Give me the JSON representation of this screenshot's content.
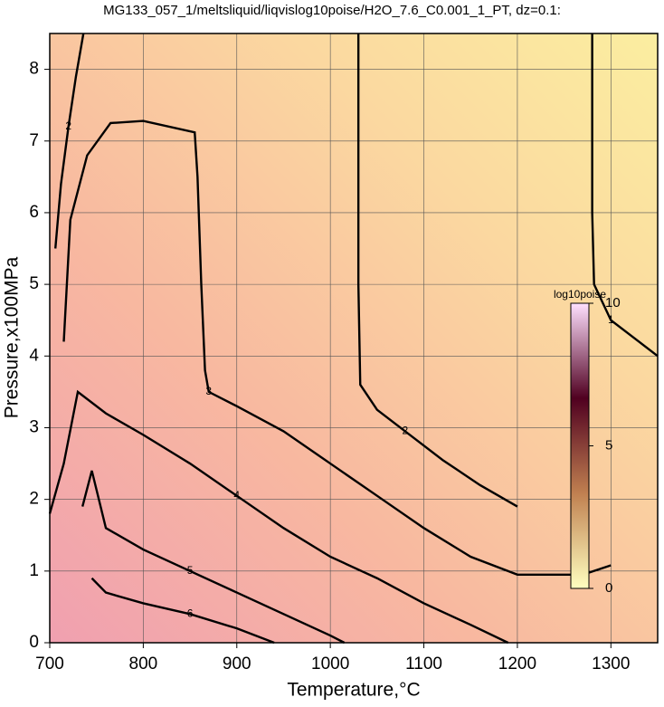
{
  "chart_data": {
    "type": "contour",
    "title": "MG133_057_1/meltsliquid/liqvislog10poise/H2O_7.6_C0.001_1_PT, dz=0.1:",
    "x_label": "Temperature,°C",
    "y_label": "Pressure,x100MPa",
    "xlim": [
      700,
      1350
    ],
    "ylim": [
      0,
      8.5
    ],
    "xticks": [
      700,
      800,
      900,
      1000,
      1100,
      1200,
      1300
    ],
    "yticks": [
      0,
      1,
      2,
      3,
      4,
      5,
      6,
      7,
      8
    ],
    "grid": true,
    "line_color": "#000000",
    "colorbar": {
      "label": "log10poise",
      "lim": [
        0,
        10
      ],
      "ticks": [
        0,
        5,
        10
      ],
      "colors": [
        "#ffffc0",
        "#c08050",
        "#500020",
        "#ffe0ff"
      ]
    },
    "contours": [
      {
        "level": 1,
        "x": [
          1280,
          1280,
          1282,
          1300,
          1330,
          1350
        ],
        "y": [
          8.5,
          6.0,
          5.0,
          4.5,
          4.2,
          4.0
        ]
      },
      {
        "level": 2,
        "x": [
          1030,
          1030,
          1032,
          1050,
          1080,
          1120,
          1160,
          1200
        ],
        "y": [
          8.5,
          5.0,
          3.6,
          3.25,
          2.95,
          2.55,
          2.2,
          1.9
        ]
      },
      {
        "level": 2,
        "x": [
          706,
          712,
          720,
          728,
          736
        ],
        "y": [
          5.5,
          6.4,
          7.2,
          7.9,
          8.5
        ]
      },
      {
        "level": 3,
        "x": [
          715,
          722,
          740,
          765,
          800,
          855,
          858,
          862,
          866,
          870,
          900,
          950,
          1000,
          1050,
          1100,
          1150,
          1200,
          1270,
          1300
        ],
        "y": [
          4.2,
          5.9,
          6.8,
          7.25,
          7.28,
          7.12,
          6.5,
          5.0,
          3.8,
          3.5,
          3.3,
          2.95,
          2.5,
          2.05,
          1.6,
          1.2,
          0.95,
          0.95,
          1.08
        ]
      },
      {
        "level": 4,
        "x": [
          700,
          715,
          730,
          760,
          800,
          850,
          900,
          950,
          1000,
          1050,
          1100,
          1150,
          1190
        ],
        "y": [
          1.8,
          2.5,
          3.5,
          3.2,
          2.9,
          2.5,
          2.05,
          1.6,
          1.2,
          0.9,
          0.55,
          0.25,
          0.0
        ]
      },
      {
        "level": 5,
        "x": [
          735,
          745,
          760,
          800,
          850,
          900,
          950,
          1000,
          1015
        ],
        "y": [
          1.9,
          2.4,
          1.6,
          1.3,
          1.0,
          0.7,
          0.4,
          0.1,
          0.0
        ]
      },
      {
        "level": 6,
        "x": [
          745,
          760,
          800,
          850,
          900,
          940
        ],
        "y": [
          0.9,
          0.7,
          0.55,
          0.4,
          0.2,
          0.0
        ]
      }
    ]
  }
}
